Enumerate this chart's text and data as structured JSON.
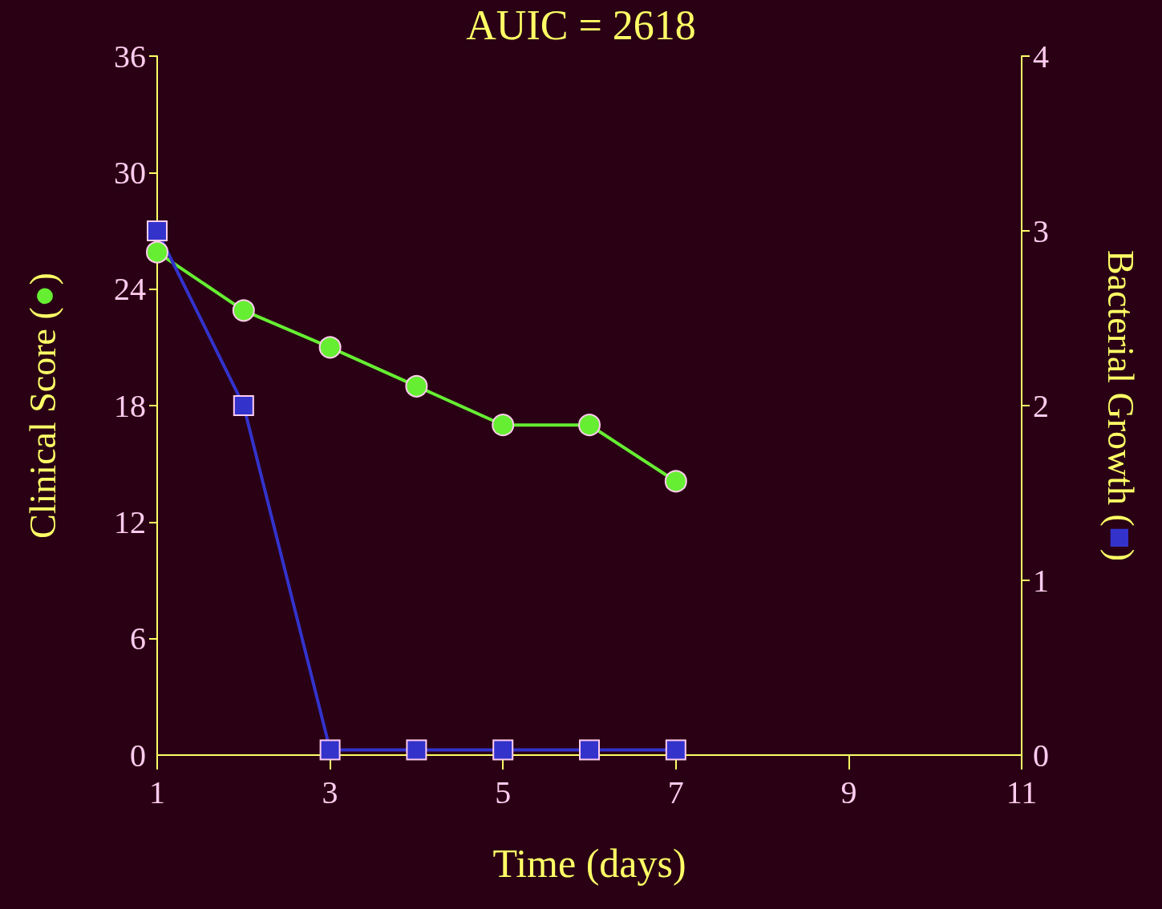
{
  "chart_data": {
    "type": "line",
    "title": "AUIC = 2618",
    "xlabel": "Time (days)",
    "ylabel": "Clinical Score (●)",
    "y2label": "Bacterial Growth (■)",
    "x": [
      1,
      2,
      3,
      4,
      5,
      6,
      7
    ],
    "series": [
      {
        "color": "#66ee33",
        "marker": "circle",
        "values": [
          25.9,
          22.9,
          21.0,
          19.0,
          17.0,
          17.0,
          14.1
        ]
      },
      {
        "color": "#3333cc",
        "marker": "square",
        "axis": "y2",
        "values": [
          3.0,
          2.0,
          0.03,
          0.03,
          0.03,
          0.03,
          0.03
        ]
      }
    ],
    "xlim": [
      1,
      11
    ],
    "xticks": [
      1,
      3,
      5,
      7,
      9,
      11
    ],
    "ylim": [
      0,
      36
    ],
    "yticks": [
      0,
      6,
      12,
      18,
      24,
      30,
      36
    ],
    "y2lim": [
      0,
      4
    ],
    "y2ticks": [
      0,
      1,
      2,
      3,
      4
    ],
    "grid": false
  }
}
